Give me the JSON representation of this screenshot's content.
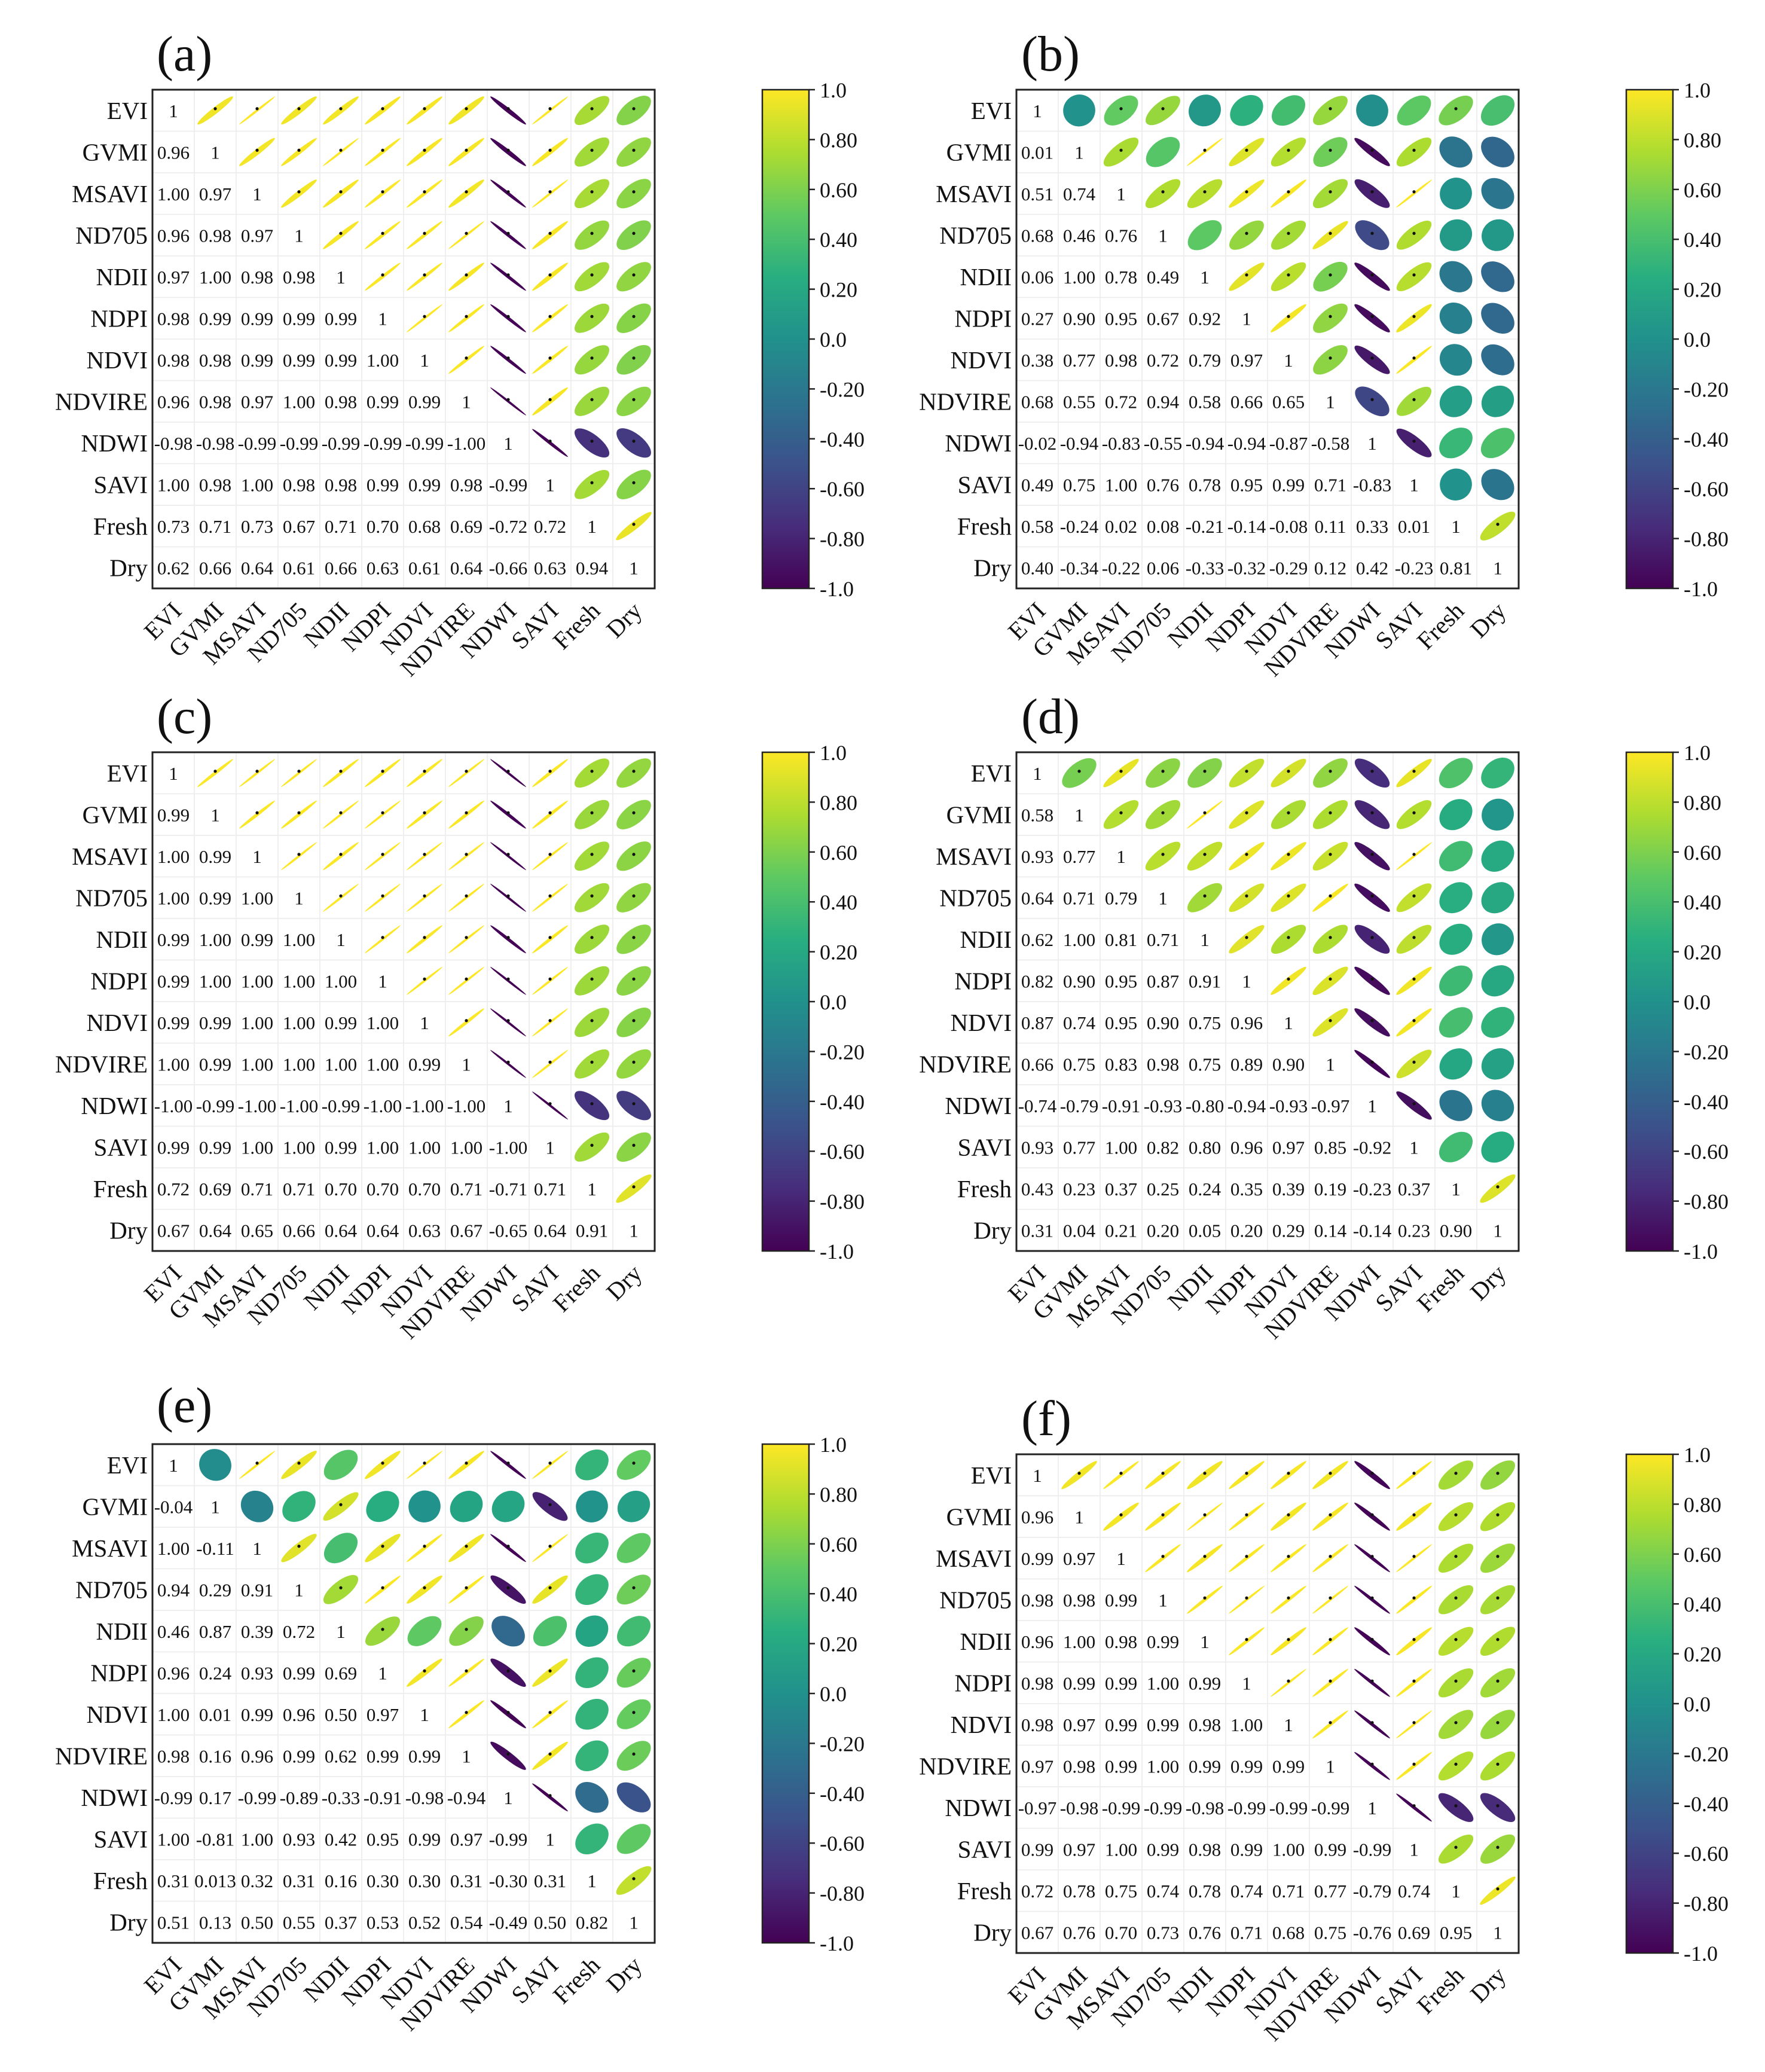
{
  "variables": [
    "EVI",
    "GVMI",
    "MSAVI",
    "ND705",
    "NDII",
    "NDPI",
    "NDVI",
    "NDVIRE",
    "NDWI",
    "SAVI",
    "Fresh",
    "Dry"
  ],
  "colorbar": {
    "ticks": [
      "1.0",
      "0.80",
      "0.60",
      "0.40",
      "0.20",
      "0.0",
      "-0.20",
      "-0.40",
      "-0.60",
      "-0.80",
      "-1.0"
    ],
    "vmin": -1,
    "vmax": 1,
    "colormap": "viridis"
  },
  "chart_data": [
    {
      "type": "heatmap",
      "label": "(a)",
      "values": [
        [
          "1",
          "0.96",
          "1.00",
          "0.96",
          "0.97",
          "0.98",
          "0.98",
          "0.96",
          "-0.98",
          "1.00",
          "0.73",
          "0.62"
        ],
        [
          "0.96",
          "1",
          "0.97",
          "0.98",
          "1.00",
          "0.99",
          "0.98",
          "0.98",
          "-0.98",
          "0.98",
          "0.71",
          "0.66"
        ],
        [
          "1.00",
          "0.97",
          "1",
          "0.97",
          "0.98",
          "0.99",
          "0.99",
          "0.97",
          "-0.99",
          "1.00",
          "0.73",
          "0.64"
        ],
        [
          "0.96",
          "0.98",
          "0.97",
          "1",
          "0.98",
          "0.99",
          "0.99",
          "1.00",
          "-0.99",
          "0.98",
          "0.67",
          "0.61"
        ],
        [
          "0.97",
          "1.00",
          "0.98",
          "0.98",
          "1",
          "0.99",
          "0.99",
          "0.98",
          "-0.99",
          "0.98",
          "0.71",
          "0.66"
        ],
        [
          "0.98",
          "0.99",
          "0.99",
          "0.99",
          "0.99",
          "1",
          "1.00",
          "0.99",
          "-0.99",
          "0.99",
          "0.70",
          "0.63"
        ],
        [
          "0.98",
          "0.98",
          "0.99",
          "0.99",
          "0.99",
          "1.00",
          "1",
          "0.99",
          "-0.99",
          "0.99",
          "0.68",
          "0.61"
        ],
        [
          "0.96",
          "0.98",
          "0.97",
          "1.00",
          "0.98",
          "0.99",
          "0.99",
          "1",
          "-1.00",
          "0.98",
          "0.69",
          "0.64"
        ],
        [
          "-0.98",
          "-0.98",
          "-0.99",
          "-0.99",
          "-0.99",
          "-0.99",
          "-0.99",
          "-1.00",
          "1",
          "-0.99",
          "-0.72",
          "-0.66"
        ],
        [
          "1.00",
          "0.98",
          "1.00",
          "0.98",
          "0.98",
          "0.99",
          "0.99",
          "0.98",
          "-0.99",
          "1",
          "0.72",
          "0.63"
        ],
        [
          "0.73",
          "0.71",
          "0.73",
          "0.67",
          "0.71",
          "0.70",
          "0.68",
          "0.69",
          "-0.72",
          "0.72",
          "1",
          "0.94"
        ],
        [
          "0.62",
          "0.66",
          "0.64",
          "0.61",
          "0.66",
          "0.63",
          "0.61",
          "0.64",
          "-0.66",
          "0.63",
          "0.94",
          "1"
        ]
      ]
    },
    {
      "type": "heatmap",
      "label": "(b)",
      "values": [
        [
          "1",
          "0.01",
          "0.51",
          "0.68",
          "0.06",
          "0.27",
          "0.38",
          "0.68",
          "-0.02",
          "0.49",
          "0.58",
          "0.40"
        ],
        [
          "0.01",
          "1",
          "0.74",
          "0.46",
          "1.00",
          "0.90",
          "0.77",
          "0.55",
          "-0.94",
          "0.75",
          "-0.24",
          "-0.34"
        ],
        [
          "0.51",
          "0.74",
          "1",
          "0.76",
          "0.78",
          "0.95",
          "0.98",
          "0.72",
          "-0.83",
          "1.00",
          "0.02",
          "-0.22"
        ],
        [
          "0.68",
          "0.46",
          "0.76",
          "1",
          "0.49",
          "0.67",
          "0.72",
          "0.94",
          "-0.55",
          "0.76",
          "0.08",
          "0.06"
        ],
        [
          "0.06",
          "1.00",
          "0.78",
          "0.49",
          "1",
          "0.92",
          "0.79",
          "0.58",
          "-0.94",
          "0.78",
          "-0.21",
          "-0.33"
        ],
        [
          "0.27",
          "0.90",
          "0.95",
          "0.67",
          "0.92",
          "1",
          "0.97",
          "0.66",
          "-0.94",
          "0.95",
          "-0.14",
          "-0.32"
        ],
        [
          "0.38",
          "0.77",
          "0.98",
          "0.72",
          "0.79",
          "0.97",
          "1",
          "0.65",
          "-0.87",
          "0.99",
          "-0.08",
          "-0.29"
        ],
        [
          "0.68",
          "0.55",
          "0.72",
          "0.94",
          "0.58",
          "0.66",
          "0.65",
          "1",
          "-0.58",
          "0.71",
          "0.11",
          "0.12"
        ],
        [
          "-0.02",
          "-0.94",
          "-0.83",
          "-0.55",
          "-0.94",
          "-0.94",
          "-0.87",
          "-0.58",
          "1",
          "-0.83",
          "0.33",
          "0.42"
        ],
        [
          "0.49",
          "0.75",
          "1.00",
          "0.76",
          "0.78",
          "0.95",
          "0.99",
          "0.71",
          "-0.83",
          "1",
          "0.01",
          "-0.23"
        ],
        [
          "0.58",
          "-0.24",
          "0.02",
          "0.08",
          "-0.21",
          "-0.14",
          "-0.08",
          "0.11",
          "0.33",
          "0.01",
          "1",
          "0.81"
        ],
        [
          "0.40",
          "-0.34",
          "-0.22",
          "0.06",
          "-0.33",
          "-0.32",
          "-0.29",
          "0.12",
          "0.42",
          "-0.23",
          "0.81",
          "1"
        ]
      ]
    },
    {
      "type": "heatmap",
      "label": "(c)",
      "values": [
        [
          "1",
          "0.99",
          "1.00",
          "1.00",
          "0.99",
          "0.99",
          "0.99",
          "1.00",
          "-1.00",
          "0.99",
          "0.72",
          "0.67"
        ],
        [
          "0.99",
          "1",
          "0.99",
          "0.99",
          "1.00",
          "1.00",
          "0.99",
          "0.99",
          "-0.99",
          "0.99",
          "0.69",
          "0.64"
        ],
        [
          "1.00",
          "0.99",
          "1",
          "1.00",
          "0.99",
          "1.00",
          "1.00",
          "1.00",
          "-1.00",
          "1.00",
          "0.71",
          "0.65"
        ],
        [
          "1.00",
          "0.99",
          "1.00",
          "1",
          "1.00",
          "1.00",
          "1.00",
          "1.00",
          "-1.00",
          "1.00",
          "0.71",
          "0.66"
        ],
        [
          "0.99",
          "1.00",
          "0.99",
          "1.00",
          "1",
          "1.00",
          "0.99",
          "1.00",
          "-0.99",
          "0.99",
          "0.70",
          "0.64"
        ],
        [
          "0.99",
          "1.00",
          "1.00",
          "1.00",
          "1.00",
          "1",
          "1.00",
          "1.00",
          "-1.00",
          "1.00",
          "0.70",
          "0.64"
        ],
        [
          "0.99",
          "0.99",
          "1.00",
          "1.00",
          "0.99",
          "1.00",
          "1",
          "0.99",
          "-1.00",
          "1.00",
          "0.70",
          "0.63"
        ],
        [
          "1.00",
          "0.99",
          "1.00",
          "1.00",
          "1.00",
          "1.00",
          "0.99",
          "1",
          "-1.00",
          "1.00",
          "0.71",
          "0.67"
        ],
        [
          "-1.00",
          "-0.99",
          "-1.00",
          "-1.00",
          "-0.99",
          "-1.00",
          "-1.00",
          "-1.00",
          "1",
          "-1.00",
          "-0.71",
          "-0.65"
        ],
        [
          "0.99",
          "0.99",
          "1.00",
          "1.00",
          "0.99",
          "1.00",
          "1.00",
          "1.00",
          "-1.00",
          "1",
          "0.71",
          "0.64"
        ],
        [
          "0.72",
          "0.69",
          "0.71",
          "0.71",
          "0.70",
          "0.70",
          "0.70",
          "0.71",
          "-0.71",
          "0.71",
          "1",
          "0.91"
        ],
        [
          "0.67",
          "0.64",
          "0.65",
          "0.66",
          "0.64",
          "0.64",
          "0.63",
          "0.67",
          "-0.65",
          "0.64",
          "0.91",
          "1"
        ]
      ]
    },
    {
      "type": "heatmap",
      "label": "(d)",
      "values": [
        [
          "1",
          "0.58",
          "0.93",
          "0.64",
          "0.62",
          "0.82",
          "0.87",
          "0.66",
          "-0.74",
          "0.93",
          "0.43",
          "0.31"
        ],
        [
          "0.58",
          "1",
          "0.77",
          "0.71",
          "1.00",
          "0.90",
          "0.74",
          "0.75",
          "-0.79",
          "0.77",
          "0.23",
          "0.04"
        ],
        [
          "0.93",
          "0.77",
          "1",
          "0.79",
          "0.81",
          "0.95",
          "0.95",
          "0.83",
          "-0.91",
          "1.00",
          "0.37",
          "0.21"
        ],
        [
          "0.64",
          "0.71",
          "0.79",
          "1",
          "0.71",
          "0.87",
          "0.90",
          "0.98",
          "-0.93",
          "0.82",
          "0.25",
          "0.20"
        ],
        [
          "0.62",
          "1.00",
          "0.81",
          "0.71",
          "1",
          "0.91",
          "0.75",
          "0.75",
          "-0.80",
          "0.80",
          "0.24",
          "0.05"
        ],
        [
          "0.82",
          "0.90",
          "0.95",
          "0.87",
          "0.91",
          "1",
          "0.96",
          "0.89",
          "-0.94",
          "0.96",
          "0.35",
          "0.20"
        ],
        [
          "0.87",
          "0.74",
          "0.95",
          "0.90",
          "0.75",
          "0.96",
          "1",
          "0.90",
          "-0.93",
          "0.97",
          "0.39",
          "0.29"
        ],
        [
          "0.66",
          "0.75",
          "0.83",
          "0.98",
          "0.75",
          "0.89",
          "0.90",
          "1",
          "-0.97",
          "0.85",
          "0.19",
          "0.14"
        ],
        [
          "-0.74",
          "-0.79",
          "-0.91",
          "-0.93",
          "-0.80",
          "-0.94",
          "-0.93",
          "-0.97",
          "1",
          "-0.92",
          "-0.23",
          "-0.14"
        ],
        [
          "0.93",
          "0.77",
          "1.00",
          "0.82",
          "0.80",
          "0.96",
          "0.97",
          "0.85",
          "-0.92",
          "1",
          "0.37",
          "0.23"
        ],
        [
          "0.43",
          "0.23",
          "0.37",
          "0.25",
          "0.24",
          "0.35",
          "0.39",
          "0.19",
          "-0.23",
          "0.37",
          "1",
          "0.90"
        ],
        [
          "0.31",
          "0.04",
          "0.21",
          "0.20",
          "0.05",
          "0.20",
          "0.29",
          "0.14",
          "-0.14",
          "0.23",
          "0.90",
          "1"
        ]
      ]
    },
    {
      "type": "heatmap",
      "label": "(e)",
      "values": [
        [
          "1",
          "-0.04",
          "1.00",
          "0.94",
          "0.46",
          "0.96",
          "1.00",
          "0.98",
          "-0.99",
          "1.00",
          "0.31",
          "0.51"
        ],
        [
          "-0.04",
          "1",
          "-0.11",
          "0.29",
          "0.87",
          "0.24",
          "0.01",
          "0.16",
          "0.17",
          "-0.81",
          "0.013",
          "0.13"
        ],
        [
          "1.00",
          "-0.11",
          "1",
          "0.91",
          "0.39",
          "0.93",
          "0.99",
          "0.96",
          "-0.99",
          "1.00",
          "0.32",
          "0.50"
        ],
        [
          "0.94",
          "0.29",
          "0.91",
          "1",
          "0.72",
          "0.99",
          "0.96",
          "0.99",
          "-0.89",
          "0.93",
          "0.31",
          "0.55"
        ],
        [
          "0.46",
          "0.87",
          "0.39",
          "0.72",
          "1",
          "0.69",
          "0.50",
          "0.62",
          "-0.33",
          "0.42",
          "0.16",
          "0.37"
        ],
        [
          "0.96",
          "0.24",
          "0.93",
          "0.99",
          "0.69",
          "1",
          "0.97",
          "0.99",
          "-0.91",
          "0.95",
          "0.30",
          "0.53"
        ],
        [
          "1.00",
          "0.01",
          "0.99",
          "0.96",
          "0.50",
          "0.97",
          "1",
          "0.99",
          "-0.98",
          "0.99",
          "0.30",
          "0.52"
        ],
        [
          "0.98",
          "0.16",
          "0.96",
          "0.99",
          "0.62",
          "0.99",
          "0.99",
          "1",
          "-0.94",
          "0.97",
          "0.31",
          "0.54"
        ],
        [
          "-0.99",
          "0.17",
          "-0.99",
          "-0.89",
          "-0.33",
          "-0.91",
          "-0.98",
          "-0.94",
          "1",
          "-0.99",
          "-0.30",
          "-0.49"
        ],
        [
          "1.00",
          "-0.81",
          "1.00",
          "0.93",
          "0.42",
          "0.95",
          "0.99",
          "0.97",
          "-0.99",
          "1",
          "0.31",
          "0.50"
        ],
        [
          "0.31",
          "0.013",
          "0.32",
          "0.31",
          "0.16",
          "0.30",
          "0.30",
          "0.31",
          "-0.30",
          "0.31",
          "1",
          "0.82"
        ],
        [
          "0.51",
          "0.13",
          "0.50",
          "0.55",
          "0.37",
          "0.53",
          "0.52",
          "0.54",
          "-0.49",
          "0.50",
          "0.82",
          "1"
        ]
      ]
    },
    {
      "type": "heatmap",
      "label": "(f)",
      "values": [
        [
          "1",
          "0.96",
          "0.99",
          "0.98",
          "0.96",
          "0.98",
          "0.98",
          "0.97",
          "-0.97",
          "0.99",
          "0.72",
          "0.67"
        ],
        [
          "0.96",
          "1",
          "0.97",
          "0.98",
          "1.00",
          "0.99",
          "0.97",
          "0.98",
          "-0.98",
          "0.97",
          "0.78",
          "0.76"
        ],
        [
          "0.99",
          "0.97",
          "1",
          "0.99",
          "0.98",
          "0.99",
          "0.99",
          "0.99",
          "-0.99",
          "1.00",
          "0.75",
          "0.70"
        ],
        [
          "0.98",
          "0.98",
          "0.99",
          "1",
          "0.99",
          "1.00",
          "0.99",
          "1.00",
          "-0.99",
          "0.99",
          "0.74",
          "0.73"
        ],
        [
          "0.96",
          "1.00",
          "0.98",
          "0.99",
          "1",
          "0.99",
          "0.98",
          "0.99",
          "-0.98",
          "0.98",
          "0.78",
          "0.76"
        ],
        [
          "0.98",
          "0.99",
          "0.99",
          "1.00",
          "0.99",
          "1",
          "1.00",
          "0.99",
          "-0.99",
          "0.99",
          "0.74",
          "0.71"
        ],
        [
          "0.98",
          "0.97",
          "0.99",
          "0.99",
          "0.98",
          "1.00",
          "1",
          "0.99",
          "-0.99",
          "1.00",
          "0.71",
          "0.68"
        ],
        [
          "0.97",
          "0.98",
          "0.99",
          "1.00",
          "0.99",
          "0.99",
          "0.99",
          "1",
          "-0.99",
          "0.99",
          "0.77",
          "0.75"
        ],
        [
          "-0.97",
          "-0.98",
          "-0.99",
          "-0.99",
          "-0.98",
          "-0.99",
          "-0.99",
          "-0.99",
          "1",
          "-0.99",
          "-0.79",
          "-0.76"
        ],
        [
          "0.99",
          "0.97",
          "1.00",
          "0.99",
          "0.98",
          "0.99",
          "1.00",
          "0.99",
          "-0.99",
          "1",
          "0.74",
          "0.69"
        ],
        [
          "0.72",
          "0.78",
          "0.75",
          "0.74",
          "0.78",
          "0.74",
          "0.71",
          "0.77",
          "-0.79",
          "0.74",
          "1",
          "0.95"
        ],
        [
          "0.67",
          "0.76",
          "0.70",
          "0.73",
          "0.76",
          "0.71",
          "0.68",
          "0.75",
          "-0.76",
          "0.69",
          "0.95",
          "1"
        ]
      ]
    }
  ]
}
